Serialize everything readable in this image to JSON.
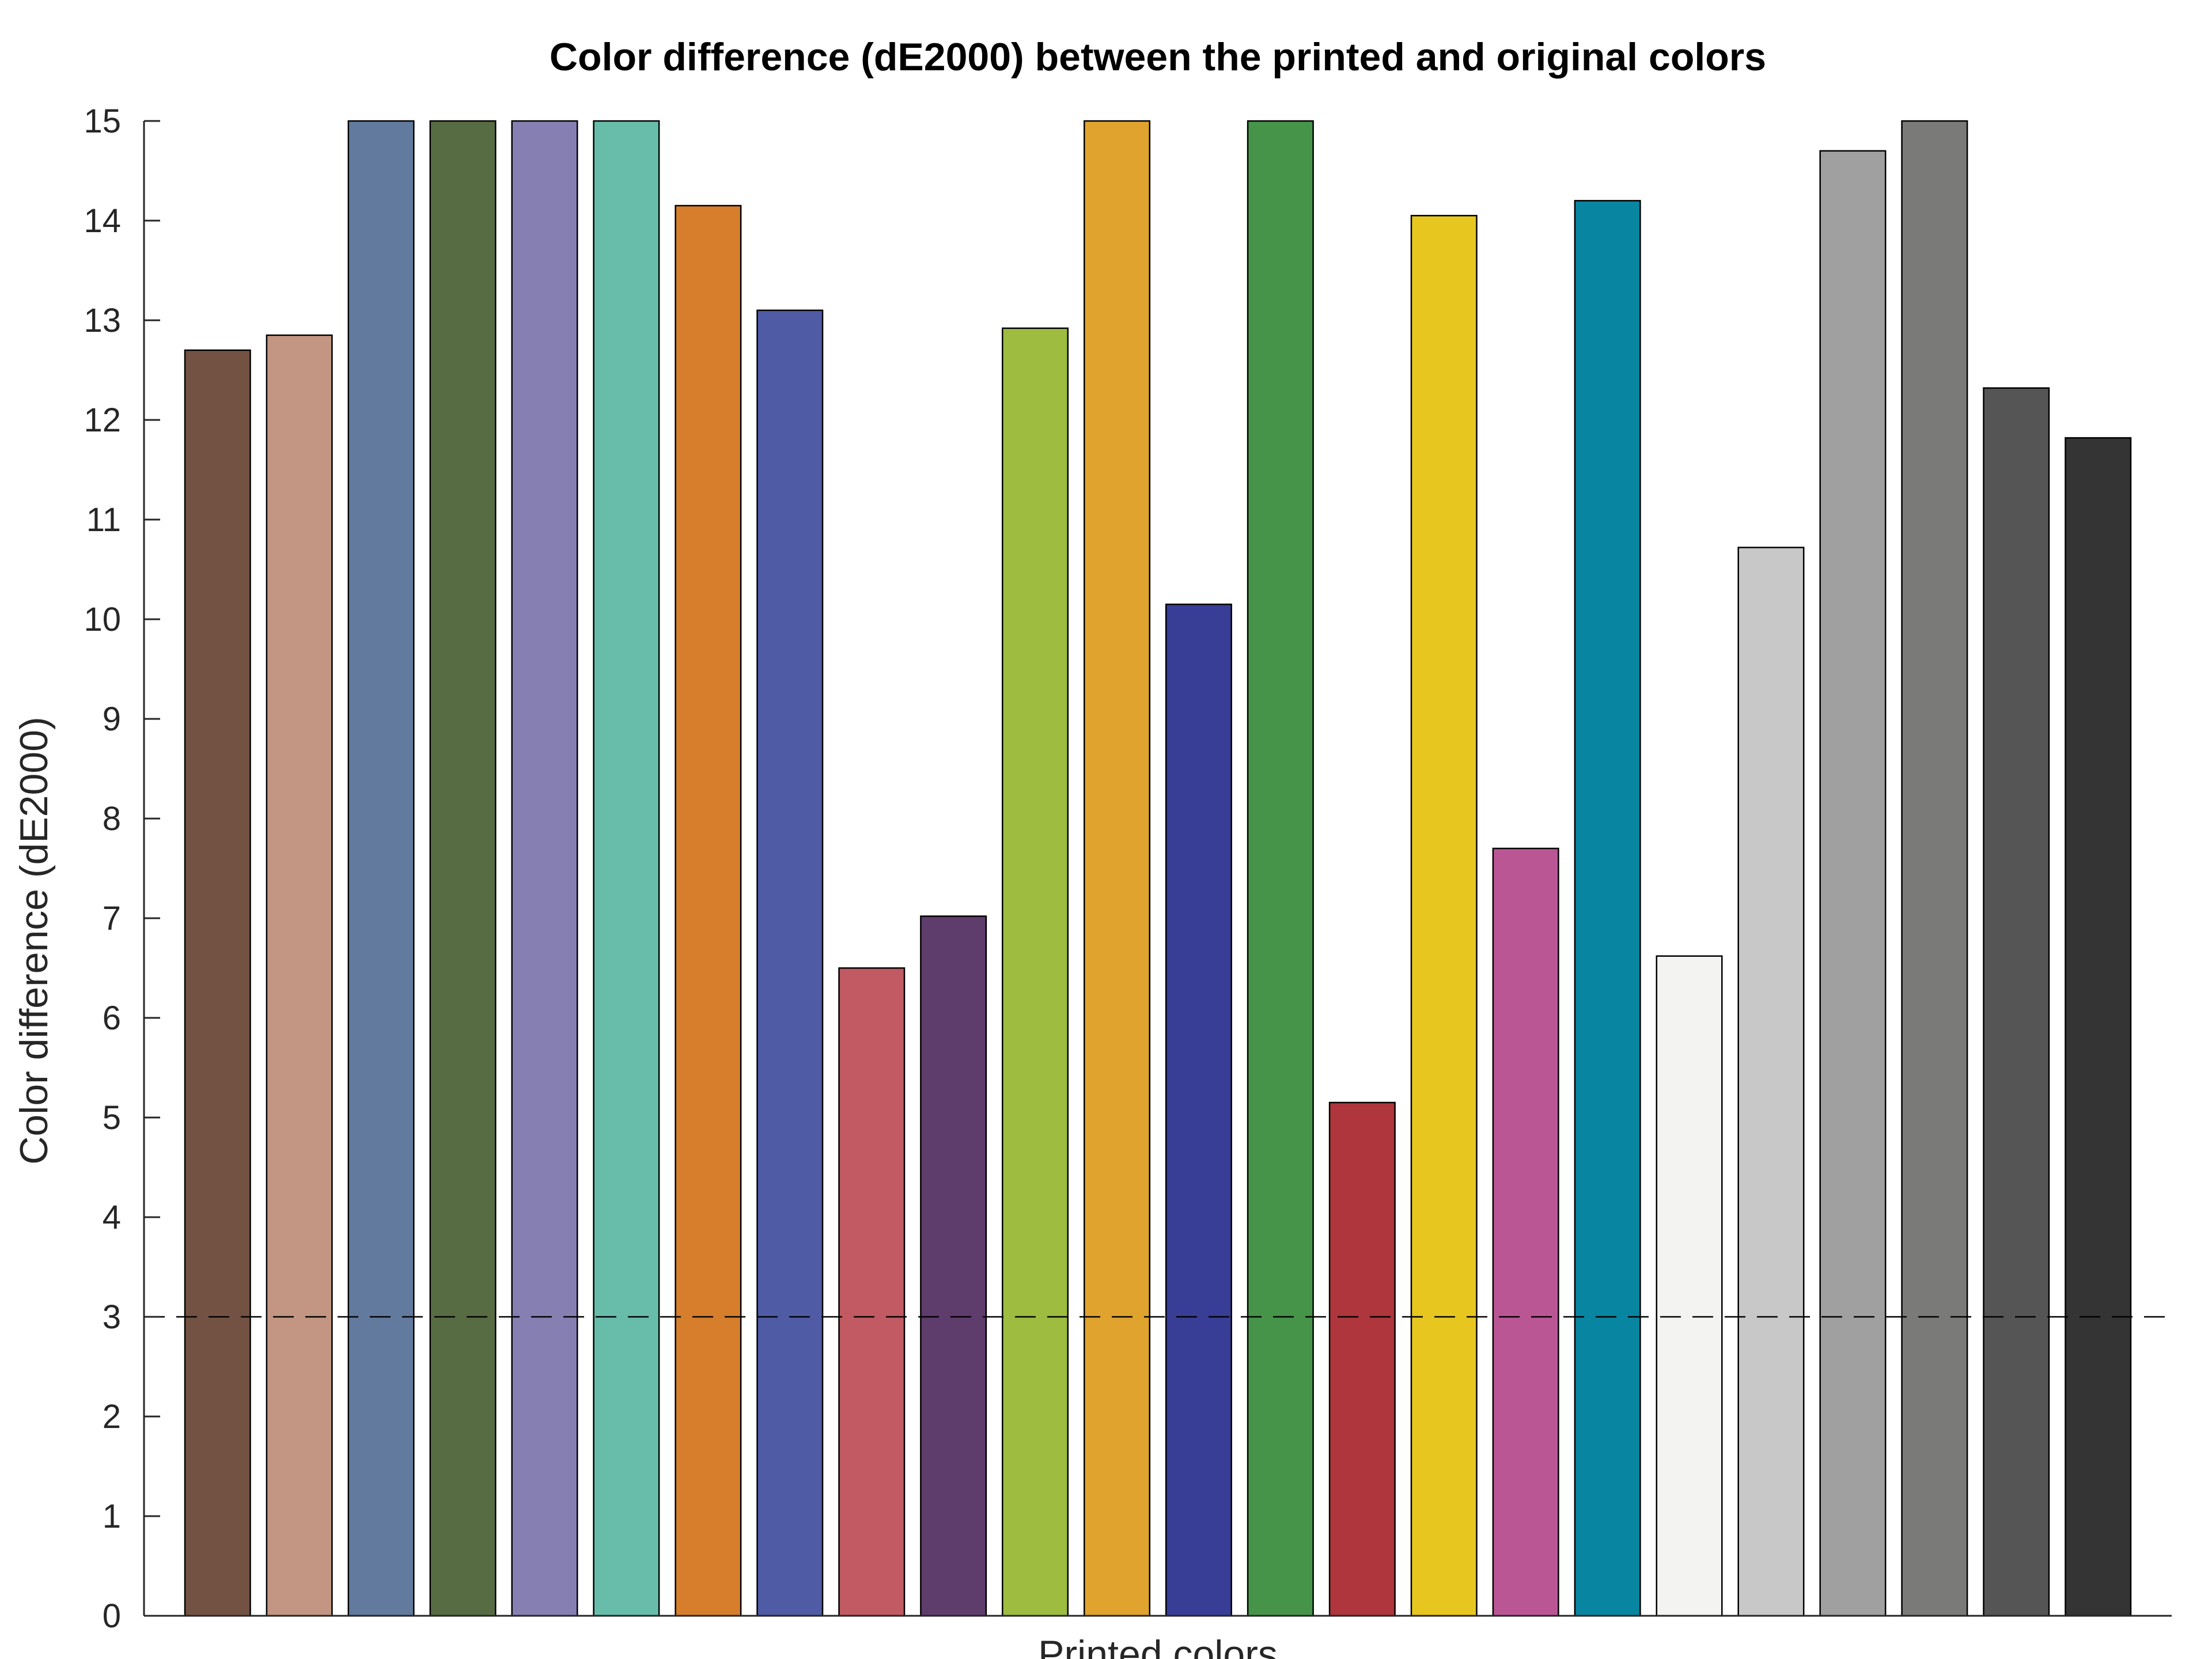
{
  "chart_data": {
    "type": "bar",
    "title": "Color difference (dE2000) between the printed and original colors",
    "xlabel": "Printed colors",
    "ylabel": "Color difference (dE2000)",
    "ylim": [
      0,
      15
    ],
    "yticks": [
      "0",
      "1",
      "2",
      "3",
      "4",
      "5",
      "6",
      "7",
      "8",
      "9",
      "10",
      "11",
      "12",
      "13",
      "14",
      "15"
    ],
    "grid": false,
    "reference_line": 3,
    "values": [
      12.7,
      12.85,
      15,
      15,
      15,
      15,
      14.15,
      13.1,
      6.5,
      7.02,
      12.92,
      15,
      10.15,
      15,
      5.15,
      14.05,
      7.7,
      14.2,
      6.62,
      10.72,
      14.7,
      15,
      12.32,
      11.82
    ],
    "colors": [
      "#735244",
      "#c29682",
      "#627a9d",
      "#576c43",
      "#8580b1",
      "#67bdaa",
      "#d67e2c",
      "#505ba6",
      "#c15a63",
      "#5e3c6c",
      "#9dbc40",
      "#e0a32e",
      "#383d96",
      "#469449",
      "#af363c",
      "#e7c71f",
      "#bb5695",
      "#0885a1",
      "#f3f3f2",
      "#c8c8c8",
      "#a0a0a0",
      "#7a7a79",
      "#555555",
      "#343434"
    ]
  }
}
